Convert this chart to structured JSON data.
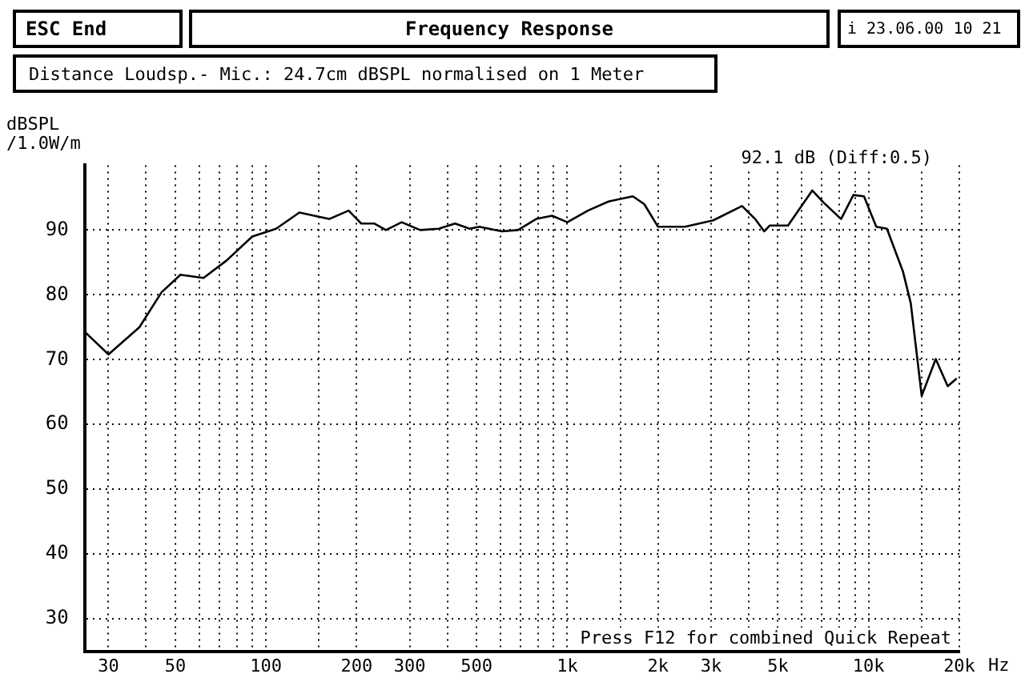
{
  "chart_data": {
    "type": "line",
    "title": "Frequency Response",
    "ylabel": "dBSPL /1.0W/m",
    "annotations": [
      "ESC End",
      "i 23.06.00 10 21",
      "Distance Loudsp.- Mic.: 24.7cm dBSPL normalised on 1 Meter",
      "92.1 dB (Diff:0.5)",
      "Press F12 for combined Quick Repeat"
    ],
    "series": [
      {
        "color": "#000000",
        "x": [
          25,
          30,
          38,
          45,
          52,
          62,
          74,
          90,
          108,
          129,
          162,
          188,
          207,
          229,
          250,
          282,
          325,
          374,
          424,
          474,
          510,
          606,
          686,
          788,
          890,
          1000,
          1170,
          1370,
          1650,
          1800,
          2000,
          2460,
          3050,
          3800,
          4200,
          4500,
          4700,
          5400,
          6500,
          7100,
          8100,
          8900,
          9650,
          10600,
          11500,
          13000,
          13800,
          15000,
          16700,
          18300,
          19600
        ],
        "values": [
          74.3,
          70.8,
          75,
          80.4,
          83.1,
          82.6,
          85.3,
          89,
          90.2,
          92.7,
          91.7,
          93,
          91,
          91,
          90,
          91.2,
          90,
          90.2,
          91,
          90.2,
          90.5,
          89.8,
          90,
          91.7,
          92.2,
          91.2,
          93,
          94.4,
          95.2,
          94,
          90.5,
          90.5,
          91.5,
          93.7,
          91.7,
          89.8,
          90.7,
          90.7,
          96.1,
          94.2,
          91.7,
          95.4,
          95.2,
          90.5,
          90.2,
          83.6,
          78.7,
          64.4,
          70.1,
          65.9,
          67.1
        ]
      }
    ],
    "log": "x",
    "xlim": [
      25,
      20000
    ],
    "ylim": [
      25,
      100
    ],
    "yticks": [
      30,
      40,
      50,
      60,
      70,
      80,
      90
    ],
    "xticks": [
      30,
      {
        "value": 40,
        "label": null
      },
      50,
      {
        "value": 60,
        "label": null
      },
      {
        "value": 70,
        "label": null
      },
      {
        "value": 80,
        "label": null
      },
      {
        "value": 90,
        "label": null
      },
      100,
      {
        "value": 150,
        "label": null
      },
      200,
      300,
      {
        "value": 400,
        "label": null
      },
      500,
      {
        "value": 600,
        "label": null
      },
      {
        "value": 700,
        "label": null
      },
      {
        "value": 800,
        "label": null
      },
      {
        "value": 900,
        "label": null
      },
      {
        "value": 1000,
        "label": "1k"
      },
      {
        "value": 1500,
        "label": null
      },
      {
        "value": 2000,
        "label": "2k"
      },
      {
        "value": 3000,
        "label": "3k"
      },
      {
        "value": 4000,
        "label": null
      },
      {
        "value": 5000,
        "label": "5k"
      },
      {
        "value": 6000,
        "label": null
      },
      {
        "value": 7000,
        "label": null
      },
      {
        "value": 8000,
        "label": null
      },
      {
        "value": 9000,
        "label": null
      },
      {
        "value": 10000,
        "label": "10k"
      },
      {
        "value": 15000,
        "label": null
      },
      {
        "value": 20000,
        "label": "20k"
      }
    ],
    "xlabel": "Hz",
    "grid": true,
    "legend": false,
    "marker": "none",
    "line_style": "solid"
  }
}
